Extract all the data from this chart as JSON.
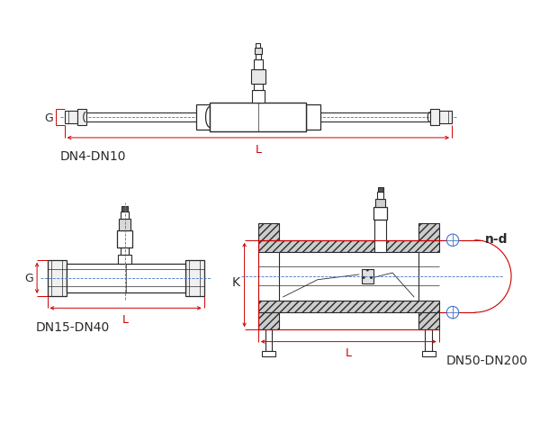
{
  "bg_color": "#ffffff",
  "lc": "#2a2a2a",
  "rc": "#cc0000",
  "bc": "#4472c4",
  "labels": {
    "dn4_dn10": "DN4-DN10",
    "dn15_dn40": "DN15-DN40",
    "dn50_dn200": "DN50-DN200",
    "G": "G",
    "L": "L",
    "K": "K",
    "nd": "n-d"
  },
  "fs": 9
}
